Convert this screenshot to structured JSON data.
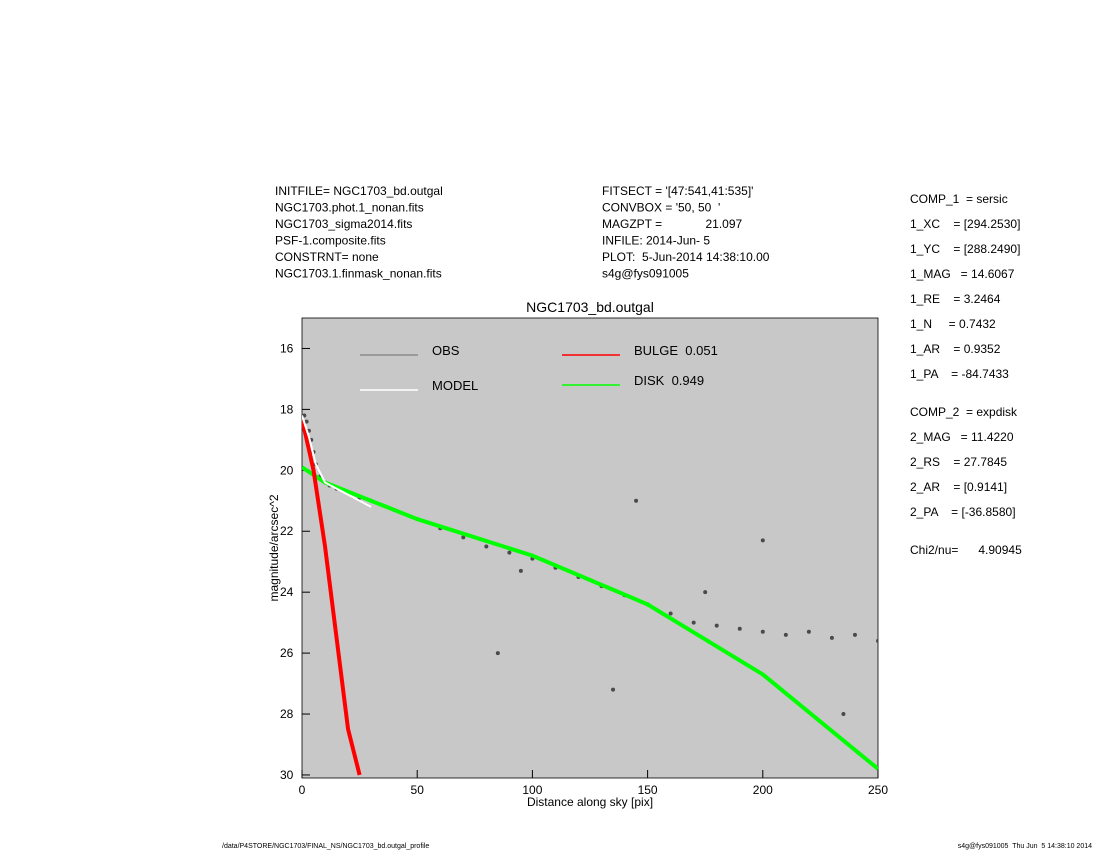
{
  "header": {
    "left": [
      "INITFILE= NGC1703_bd.outgal",
      "NGC1703.phot.1_nonan.fits",
      "NGC1703_sigma2014.fits",
      "PSF-1.composite.fits",
      "CONSTRNT= none",
      "NGC1703.1.finmask_nonan.fits"
    ],
    "middle": [
      "FITSECT = '[47:541,41:535]'",
      "CONVBOX = '50, 50  '",
      "MAGZPT =             21.097",
      "INFILE: 2014-Jun- 5",
      "PLOT:  5-Jun-2014 14:38:10.00",
      "s4g@fys091005"
    ]
  },
  "parameters": [
    "COMP_1  = sersic",
    "1_XC    = [294.2530]",
    "1_YC    = [288.2490]",
    "1_MAG   = 14.6067",
    "1_RE    = 3.2464",
    "1_N     = 0.7432",
    "1_AR    = 0.9352",
    "1_PA    = -84.7433",
    "COMP_2  = expdisk",
    "2_MAG   = 11.4220",
    "2_RS    = 27.7845",
    "2_AR    = [0.9141]",
    "2_PA    = [-36.8580]",
    "Chi2/nu=      4.90945"
  ],
  "footer": {
    "left": "/data/P4STORE/NGC1703/FINAL_NS/NGC1703_bd.outgal_profile",
    "right": "s4g@fys091005  Thu Jun  5 14:38:10 2014"
  },
  "chart_data": {
    "type": "scatter",
    "title": "NGC1703_bd.outgal",
    "x_label": "Distance along sky [pix]",
    "y_label": "magnitude/arcsec^2",
    "xlim": [
      0,
      250
    ],
    "xticks": [
      0,
      50,
      100,
      150,
      200,
      250
    ],
    "ylim": [
      15,
      30.1
    ],
    "y_inverted": true,
    "yticks": [
      16,
      18,
      20,
      22,
      24,
      26,
      28,
      30
    ],
    "background": "#c8c8c8",
    "series": [
      {
        "name": "OBS",
        "type": "scatter",
        "color": "#8a8a8a",
        "point_color": "#4a4a4a",
        "x": [
          1,
          2,
          3,
          4,
          5,
          6,
          8,
          10,
          12,
          15,
          20,
          25,
          30,
          40,
          50,
          60,
          70,
          80,
          90,
          100,
          110,
          120,
          130,
          140,
          150,
          160,
          170,
          180,
          190,
          200,
          210,
          220,
          230,
          240,
          250,
          85,
          95,
          135,
          145,
          175,
          200,
          235
        ],
        "values": [
          18.2,
          18.4,
          18.7,
          19.0,
          19.4,
          19.8,
          20.2,
          20.4,
          20.5,
          20.6,
          20.75,
          20.9,
          21.0,
          21.3,
          21.6,
          21.9,
          22.2,
          22.5,
          22.7,
          22.9,
          23.2,
          23.5,
          23.8,
          24.1,
          24.4,
          24.7,
          25.0,
          25.1,
          25.2,
          25.3,
          25.4,
          25.3,
          25.5,
          25.4,
          25.6,
          26.0,
          23.3,
          27.2,
          21.0,
          24.0,
          22.3,
          28.0
        ]
      },
      {
        "name": "MODEL",
        "type": "line",
        "color": "#ffffff",
        "x": [
          0,
          3,
          6,
          10,
          15,
          20,
          25,
          30
        ],
        "values": [
          18.2,
          18.9,
          19.8,
          20.4,
          20.6,
          20.8,
          21.0,
          21.2
        ]
      },
      {
        "name": "BULGE  0.051",
        "type": "line",
        "color": "#ff0000",
        "x": [
          0,
          5,
          10,
          15,
          20,
          25
        ],
        "values": [
          18.3,
          20.0,
          22.5,
          25.5,
          28.5,
          30.0
        ]
      },
      {
        "name": "DISK  0.949",
        "type": "line",
        "color": "#00ff00",
        "x": [
          0,
          10,
          50,
          100,
          150,
          200,
          250
        ],
        "values": [
          19.9,
          20.4,
          21.6,
          22.8,
          24.4,
          26.7,
          29.8
        ]
      }
    ]
  }
}
